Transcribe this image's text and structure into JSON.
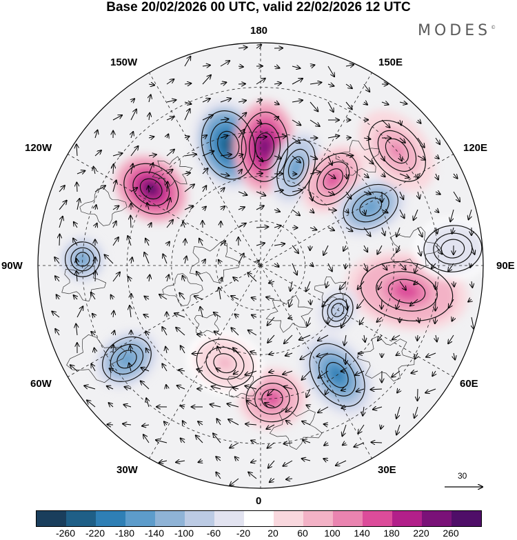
{
  "title": "Base 20/02/2026 00 UTC, valid 22/02/2026 12 UTC",
  "logo": {
    "text": "MODES",
    "mark": "©"
  },
  "map": {
    "projection": "polar-stereographic-north",
    "longitude_labels": {
      "top": "180",
      "bottom": "0",
      "left": "90W",
      "right": "90E",
      "upper_left_1": "150W",
      "upper_left_2": "120W",
      "lower_left_1": "60W",
      "lower_left_2": "30W",
      "upper_right_1": "150E",
      "upper_right_2": "120E",
      "lower_right_1": "60E",
      "lower_right_2": "30E"
    },
    "anomaly_centers": [
      {
        "lon": -165,
        "lat": 48,
        "value": -240,
        "rx_deg": 9,
        "ry_deg": 12
      },
      {
        "lon": 178,
        "lat": 50,
        "value": 250,
        "rx_deg": 8,
        "ry_deg": 12
      },
      {
        "lon": 160,
        "lat": 55,
        "value": -160,
        "rx_deg": 6,
        "ry_deg": 10
      },
      {
        "lon": 140,
        "lat": 52,
        "value": 150,
        "rx_deg": 7,
        "ry_deg": 10
      },
      {
        "lon": 118,
        "lat": 48,
        "value": -170,
        "rx_deg": 7,
        "ry_deg": 10
      },
      {
        "lon": -125,
        "lat": 45,
        "value": 260,
        "rx_deg": 8,
        "ry_deg": 10
      },
      {
        "lon": -92,
        "lat": 30,
        "value": -150,
        "rx_deg": 6,
        "ry_deg": 6
      },
      {
        "lon": -55,
        "lat": 35,
        "value": -170,
        "rx_deg": 7,
        "ry_deg": 9
      },
      {
        "lon": 35,
        "lat": 45,
        "value": -220,
        "rx_deg": 8,
        "ry_deg": 12
      },
      {
        "lon": 5,
        "lat": 45,
        "value": 140,
        "rx_deg": 9,
        "ry_deg": 8
      },
      {
        "lon": 80,
        "lat": 40,
        "value": 150,
        "rx_deg": 10,
        "ry_deg": 16
      },
      {
        "lon": 60,
        "lat": 60,
        "value": -100,
        "rx_deg": 6,
        "ry_deg": 5
      },
      {
        "lon": 95,
        "lat": 25,
        "value": -60,
        "rx_deg": 8,
        "ry_deg": 10
      },
      {
        "lon": 130,
        "lat": 30,
        "value": 100,
        "rx_deg": 12,
        "ry_deg": 8
      },
      {
        "lon": -20,
        "lat": 55,
        "value": 60,
        "rx_deg": 10,
        "ry_deg": 8
      }
    ],
    "reference_vector": {
      "value": "30"
    }
  },
  "colorbar": {
    "ticks": [
      "-260",
      "-220",
      "-180",
      "-140",
      "-100",
      "-60",
      "-20",
      "20",
      "60",
      "100",
      "140",
      "180",
      "220",
      "260"
    ],
    "colors": [
      "#1a3e5c",
      "#1f5f87",
      "#2f7fb5",
      "#5d9ccb",
      "#8fb3d6",
      "#bccbe4",
      "#e2e3f0",
      "#ffffff",
      "#f9d8de",
      "#f3b2c6",
      "#ea84b0",
      "#dc4c9a",
      "#b2208a",
      "#7a1278",
      "#4f0e68"
    ]
  }
}
